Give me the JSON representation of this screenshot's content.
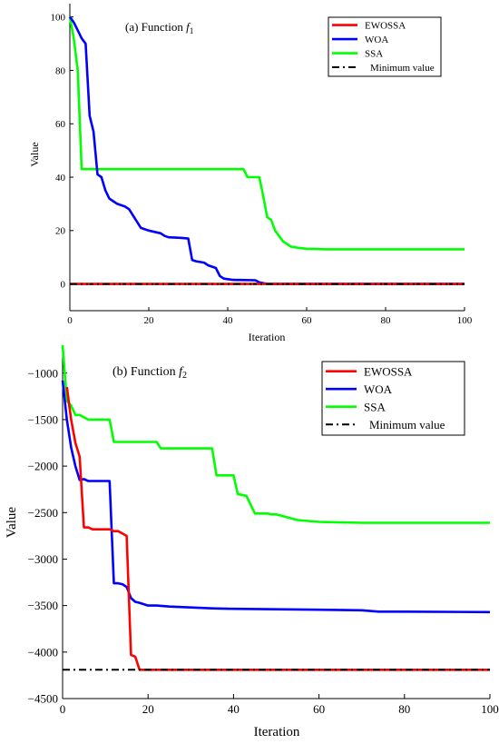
{
  "chart_data": [
    {
      "type": "line",
      "title_prefix": "(a) Function ",
      "title_var": "f",
      "title_sub": "1",
      "xlabel": "Iteration",
      "ylabel": "Value",
      "xlim": [
        0,
        100
      ],
      "ylim": [
        -10,
        105
      ],
      "xticks": [
        0,
        20,
        40,
        60,
        80,
        100
      ],
      "yticks": [
        0,
        20,
        40,
        60,
        80,
        100
      ],
      "grid": false,
      "legend_position": "top-right",
      "series": [
        {
          "name": "EWOSSA",
          "color": "#ff0000",
          "dash": "solid",
          "x": [
            0,
            100
          ],
          "y": [
            0,
            0
          ]
        },
        {
          "name": "WOA",
          "color": "#0000ff",
          "dash": "solid",
          "x": [
            0,
            1,
            2,
            3,
            4,
            5,
            6,
            7,
            8,
            9,
            10,
            11,
            12,
            14,
            15,
            18,
            19,
            20,
            23,
            24,
            25,
            28,
            30,
            31,
            32,
            34,
            35,
            37,
            38,
            39,
            40,
            41,
            42,
            43,
            47,
            48,
            49,
            50,
            100
          ],
          "y": [
            100,
            98,
            95,
            92,
            90,
            63,
            57,
            41,
            40,
            35,
            32,
            31,
            30,
            29,
            28,
            21,
            20.5,
            20,
            19,
            18,
            17.5,
            17.3,
            17,
            9,
            8.5,
            8,
            7,
            6,
            3,
            2,
            1.8,
            1.6,
            1.5,
            1.5,
            1.4,
            0.6,
            0.3,
            0,
            0
          ]
        },
        {
          "name": "SSA",
          "color": "#00ff00",
          "dash": "solid",
          "x": [
            0,
            1,
            2,
            3,
            4,
            44,
            45,
            48,
            49,
            50,
            51,
            52,
            54,
            56,
            58,
            60,
            65,
            100
          ],
          "y": [
            100,
            92,
            80,
            43,
            43,
            43,
            40,
            40,
            33,
            25,
            24,
            20,
            16,
            14,
            13.5,
            13.2,
            13,
            13
          ]
        },
        {
          "name": "Minimum value",
          "color": "#000000",
          "dash": "dashdot",
          "x": [
            0,
            100
          ],
          "y": [
            0,
            0
          ]
        }
      ]
    },
    {
      "type": "line",
      "title_prefix": "(b) Function ",
      "title_var": "f",
      "title_sub": "2",
      "xlabel": "Iteration",
      "ylabel": "Value",
      "xlim": [
        0,
        100
      ],
      "ylim": [
        -4500,
        -700
      ],
      "xticks": [
        0,
        20,
        40,
        60,
        80,
        100
      ],
      "yticks": [
        -1000,
        -1500,
        -2000,
        -2500,
        -3000,
        -3500,
        -4000,
        -4500
      ],
      "grid": false,
      "legend_position": "top-right",
      "series": [
        {
          "name": "EWOSSA",
          "color": "#ff0000",
          "dash": "solid",
          "x": [
            1,
            2,
            3,
            4,
            5,
            6,
            7,
            11,
            12,
            13,
            15,
            16,
            17,
            18,
            100
          ],
          "y": [
            -1150,
            -1500,
            -1750,
            -1900,
            -2660,
            -2660,
            -2680,
            -2680,
            -2700,
            -2700,
            -2750,
            -4030,
            -4050,
            -4190,
            -4190
          ]
        },
        {
          "name": "WOA",
          "color": "#0000ff",
          "dash": "solid",
          "x": [
            0,
            1,
            2,
            3,
            4,
            5,
            6,
            7,
            11,
            12,
            13,
            14,
            15,
            16,
            17,
            18,
            20,
            22,
            25,
            30,
            35,
            40,
            50,
            60,
            70,
            74,
            80,
            100
          ],
          "y": [
            -1080,
            -1500,
            -1800,
            -2000,
            -2150,
            -2140,
            -2160,
            -2160,
            -2160,
            -3260,
            -3260,
            -3270,
            -3300,
            -3420,
            -3460,
            -3470,
            -3500,
            -3500,
            -3510,
            -3520,
            -3530,
            -3535,
            -3540,
            -3545,
            -3550,
            -3565,
            -3565,
            -3570
          ]
        },
        {
          "name": "SSA",
          "color": "#00ff00",
          "dash": "solid",
          "x": [
            0,
            1,
            2,
            3,
            4,
            6,
            7,
            11,
            12,
            22,
            23,
            35,
            36,
            40,
            41,
            43,
            45,
            48,
            49,
            50,
            55,
            60,
            70,
            100
          ],
          "y": [
            -700,
            -1300,
            -1350,
            -1450,
            -1450,
            -1500,
            -1500,
            -1500,
            -1740,
            -1740,
            -1810,
            -1810,
            -2100,
            -2100,
            -2300,
            -2320,
            -2510,
            -2510,
            -2520,
            -2520,
            -2580,
            -2600,
            -2610,
            -2610
          ]
        },
        {
          "name": "Minimum value",
          "color": "#000000",
          "dash": "dashdot",
          "x": [
            0,
            100
          ],
          "y": [
            -4190,
            -4190
          ]
        }
      ]
    }
  ]
}
